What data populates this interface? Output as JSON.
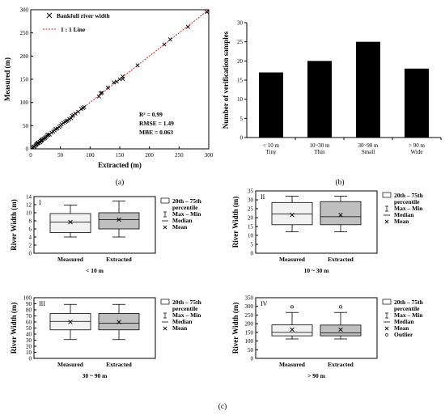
{
  "scatter": {
    "legend_marker_label": "Bankfull river width",
    "legend_line_label": "1 : 1  Line",
    "xlabel": "Extracted (m)",
    "ylabel": "Measured (m)",
    "stats": [
      "R² = 0.99",
      "RMSE = 1.49",
      "MBE = 0.063"
    ],
    "caption": "(a)"
  },
  "bars": {
    "ylabel": "Number of verification samples",
    "categories": [
      "< 10 m",
      "10~30 m",
      "30~90 m",
      "> 90 m"
    ],
    "subcategories": [
      "Tiny",
      "Thin",
      "Small",
      "Wide"
    ],
    "caption": "(b)"
  },
  "boxes": {
    "ylabel": "River Width (m)",
    "groups": [
      "Measured",
      "Extracted"
    ],
    "legend": {
      "box": "20th – 75th",
      "box2": "percentile",
      "whisker": "Max – Min",
      "median": "Median",
      "mean": "Mean",
      "outlier": "Outlier"
    },
    "caption": "(c)"
  },
  "colors": {
    "one_to_one_line": "#e31a1c",
    "bar_fill": "#000000",
    "box_measured": "#f2f2f2",
    "box_extracted": "#bfbfbf"
  },
  "chart_data": [
    {
      "type": "scatter",
      "xlabel": "Extracted (m)",
      "ylabel": "Measured (m)",
      "xlim": [
        0,
        300
      ],
      "ylim": [
        0,
        300
      ],
      "xticks": [
        0,
        50,
        100,
        150,
        200,
        250,
        300
      ],
      "yticks": [
        0,
        50,
        100,
        150,
        200,
        250,
        300
      ],
      "legend": "top-left",
      "series": [
        {
          "name": "Bankfull river width",
          "points": [
            [
              3,
              3
            ],
            [
              5,
              5
            ],
            [
              6,
              5
            ],
            [
              8,
              7
            ],
            [
              9,
              9
            ],
            [
              10,
              10
            ],
            [
              11,
              12
            ],
            [
              12,
              12
            ],
            [
              13,
              13
            ],
            [
              15,
              15
            ],
            [
              16,
              14
            ],
            [
              17,
              17
            ],
            [
              18,
              18
            ],
            [
              19,
              19
            ],
            [
              20,
              21
            ],
            [
              22,
              22
            ],
            [
              24,
              23
            ],
            [
              25,
              25
            ],
            [
              27,
              27
            ],
            [
              28,
              30
            ],
            [
              30,
              30
            ],
            [
              32,
              31
            ],
            [
              35,
              35
            ],
            [
              38,
              37
            ],
            [
              40,
              40
            ],
            [
              42,
              43
            ],
            [
              45,
              44
            ],
            [
              48,
              47
            ],
            [
              50,
              50
            ],
            [
              52,
              53
            ],
            [
              55,
              56
            ],
            [
              58,
              58
            ],
            [
              60,
              60
            ],
            [
              62,
              61
            ],
            [
              65,
              64
            ],
            [
              68,
              66
            ],
            [
              70,
              71
            ],
            [
              72,
              73
            ],
            [
              75,
              76
            ],
            [
              80,
              80
            ],
            [
              85,
              86
            ],
            [
              88,
              88
            ],
            [
              90,
              90
            ],
            [
              115,
              113
            ],
            [
              118,
              120
            ],
            [
              120,
              121
            ],
            [
              130,
              132
            ],
            [
              140,
              143
            ],
            [
              145,
              145
            ],
            [
              150,
              150
            ],
            [
              155,
              156
            ],
            [
              155,
              151
            ],
            [
              180,
              180
            ],
            [
              225,
              225
            ],
            [
              235,
              236
            ],
            [
              265,
              263
            ],
            [
              297,
              295
            ]
          ]
        },
        {
          "name": "1 : 1  Line",
          "line": [
            [
              0,
              0
            ],
            [
              300,
              300
            ]
          ]
        }
      ]
    },
    {
      "type": "bar",
      "ylabel": "Number of verification samples",
      "categories": [
        "< 10 m",
        "10~30 m",
        "30~90 m",
        "> 90 m"
      ],
      "values": [
        17,
        20,
        25,
        18
      ],
      "ylim": [
        0,
        30
      ],
      "yticks": [
        0,
        5,
        10,
        15,
        20,
        25,
        30
      ]
    },
    {
      "type": "box",
      "panel": "I",
      "xlabel": "< 10 m",
      "ylabel": "River Width (m)",
      "ylim": [
        0,
        14
      ],
      "yticks": [
        0,
        2,
        4,
        6,
        8,
        10,
        12,
        14
      ],
      "boxes": [
        {
          "name": "Measured",
          "min": 4.0,
          "q1": 5.1,
          "median": 7.7,
          "q3": 9.8,
          "max": 11.9,
          "mean": 7.7
        },
        {
          "name": "Extracted",
          "min": 4.0,
          "q1": 6.0,
          "median": 8.3,
          "q3": 10.0,
          "max": 12.9,
          "mean": 8.3
        }
      ]
    },
    {
      "type": "box",
      "panel": "II",
      "xlabel": "10 ~ 30 m",
      "ylabel": "River Width (m)",
      "ylim": [
        0,
        35
      ],
      "yticks": [
        0,
        5,
        10,
        15,
        20,
        25,
        30,
        35
      ],
      "boxes": [
        {
          "name": "Measured",
          "min": 12,
          "q1": 16,
          "median": 22,
          "q3": 28.5,
          "max": 32,
          "mean": 21.5
        },
        {
          "name": "Extracted",
          "min": 12,
          "q1": 16,
          "median": 20.5,
          "q3": 29,
          "max": 32,
          "mean": 21.5
        }
      ]
    },
    {
      "type": "box",
      "panel": "III",
      "xlabel": "30 ~ 90 m",
      "ylabel": "River Width (m)",
      "ylim": [
        0,
        100
      ],
      "yticks": [
        0,
        10,
        20,
        30,
        40,
        50,
        60,
        70,
        80,
        90,
        100
      ],
      "boxes": [
        {
          "name": "Measured",
          "min": 31,
          "q1": 47,
          "median": 61,
          "q3": 74,
          "max": 89,
          "mean": 60
        },
        {
          "name": "Extracted",
          "min": 31,
          "q1": 47,
          "median": 58,
          "q3": 74,
          "max": 89,
          "mean": 60
        }
      ]
    },
    {
      "type": "box",
      "panel": "IV",
      "xlabel": "> 90 m",
      "ylabel": "River Width (m)",
      "ylim": [
        0,
        350
      ],
      "yticks": [
        0,
        50,
        100,
        150,
        200,
        250,
        300,
        350
      ],
      "boxes": [
        {
          "name": "Measured",
          "min": 112,
          "q1": 130,
          "median": 150,
          "q3": 193,
          "max": 265,
          "mean": 166,
          "outliers": [
            297
          ]
        },
        {
          "name": "Extracted",
          "min": 112,
          "q1": 130,
          "median": 147,
          "q3": 192,
          "max": 265,
          "mean": 166,
          "outliers": [
            297
          ]
        }
      ]
    }
  ]
}
